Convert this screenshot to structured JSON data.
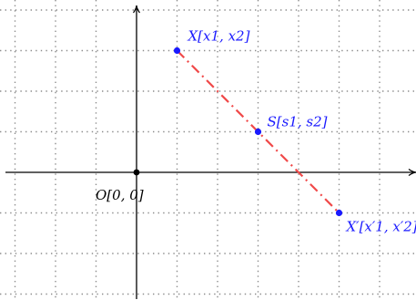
{
  "figure": {
    "origin_label": "O[0, 0]",
    "grid_style": "dotted",
    "colors": {
      "axes": "#000000",
      "grid": "#8c8c8c",
      "point": "#1a1aff",
      "label": "#1a1aff",
      "segment": "#f04a4a",
      "origin_point": "#000000",
      "origin_label": "#000000"
    },
    "segment_style": "dash-dot",
    "points": [
      {
        "id": "X",
        "label": "X[x1, x2]",
        "x": 1,
        "y": 3
      },
      {
        "id": "S",
        "label": "S[s1, s2]",
        "x": 3,
        "y": 1
      },
      {
        "id": "X_prime",
        "label": "X′[x′1, x′2]",
        "x": 5,
        "y": -1
      }
    ],
    "segment_from": "X",
    "segment_to": "X_prime",
    "x_range": [
      -3,
      7
    ],
    "y_range": [
      -3,
      4
    ]
  }
}
